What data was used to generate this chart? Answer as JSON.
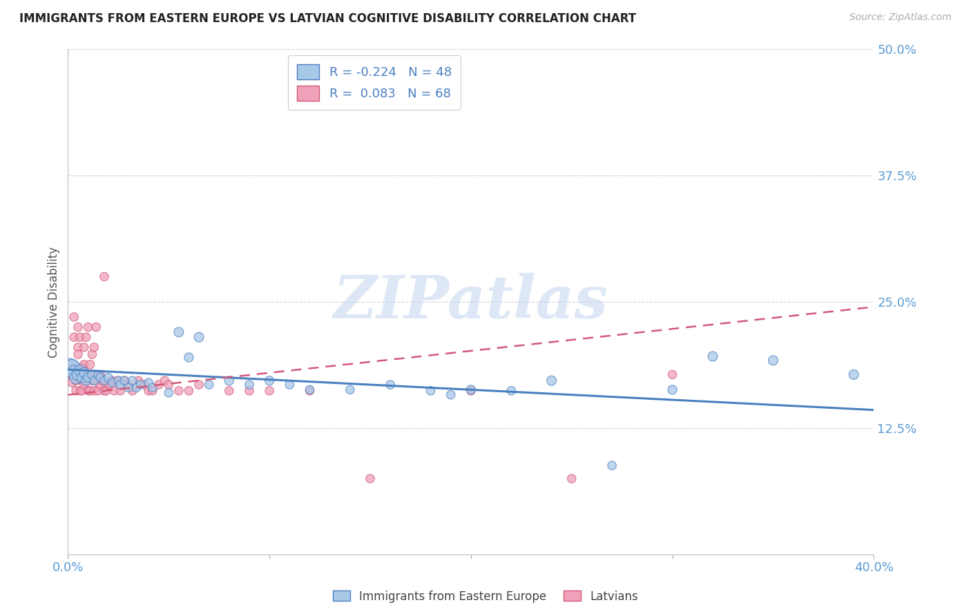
{
  "title": "IMMIGRANTS FROM EASTERN EUROPE VS LATVIAN COGNITIVE DISABILITY CORRELATION CHART",
  "source": "Source: ZipAtlas.com",
  "ylabel": "Cognitive Disability",
  "legend_label_blue": "Immigrants from Eastern Europe",
  "legend_label_pink": "Latvians",
  "R_blue": -0.224,
  "N_blue": 48,
  "R_pink": 0.083,
  "N_pink": 68,
  "xlim": [
    0.0,
    0.4
  ],
  "ylim": [
    0.0,
    0.5
  ],
  "yticks": [
    0.125,
    0.25,
    0.375,
    0.5
  ],
  "ytick_labels": [
    "12.5%",
    "25.0%",
    "37.5%",
    "50.0%"
  ],
  "xticks": [
    0.0,
    0.1,
    0.2,
    0.3,
    0.4
  ],
  "xtick_labels": [
    "0.0%",
    "",
    "",
    "",
    "40.0%"
  ],
  "color_blue": "#a8c8e8",
  "color_pink": "#f0a0b8",
  "color_blue_line": "#4a7fc0",
  "color_pink_line": "#d05878",
  "watermark_color": "#c8d8f0",
  "watermark": "ZIPatlas",
  "background_color": "#ffffff",
  "blue_line_x0": 0.0,
  "blue_line_y0": 0.183,
  "blue_line_x1": 0.4,
  "blue_line_y1": 0.143,
  "pink_line_x0": 0.0,
  "pink_line_y0": 0.158,
  "pink_line_x1": 0.4,
  "pink_line_y1": 0.245,
  "blue_scatter_x": [
    0.001,
    0.002,
    0.003,
    0.004,
    0.005,
    0.006,
    0.007,
    0.008,
    0.009,
    0.01,
    0.012,
    0.013,
    0.015,
    0.016,
    0.018,
    0.02,
    0.022,
    0.025,
    0.026,
    0.028,
    0.03,
    0.032,
    0.034,
    0.036,
    0.04,
    0.042,
    0.05,
    0.055,
    0.06,
    0.065,
    0.07,
    0.08,
    0.09,
    0.1,
    0.11,
    0.12,
    0.14,
    0.16,
    0.18,
    0.19,
    0.2,
    0.22,
    0.24,
    0.27,
    0.3,
    0.32,
    0.35,
    0.39
  ],
  "blue_scatter_y": [
    0.185,
    0.185,
    0.18,
    0.175,
    0.178,
    0.182,
    0.175,
    0.18,
    0.172,
    0.175,
    0.178,
    0.172,
    0.178,
    0.175,
    0.172,
    0.175,
    0.17,
    0.172,
    0.168,
    0.172,
    0.165,
    0.172,
    0.165,
    0.168,
    0.17,
    0.165,
    0.16,
    0.22,
    0.195,
    0.215,
    0.168,
    0.172,
    0.168,
    0.172,
    0.168,
    0.163,
    0.163,
    0.168,
    0.162,
    0.158,
    0.163,
    0.162,
    0.172,
    0.088,
    0.163,
    0.196,
    0.192,
    0.178
  ],
  "blue_scatter_size": [
    350,
    280,
    220,
    180,
    160,
    140,
    120,
    110,
    100,
    95,
    90,
    85,
    80,
    80,
    80,
    80,
    80,
    80,
    80,
    80,
    80,
    80,
    80,
    80,
    80,
    80,
    80,
    100,
    90,
    100,
    80,
    90,
    80,
    90,
    80,
    80,
    80,
    80,
    80,
    80,
    90,
    80,
    100,
    80,
    90,
    100,
    100,
    100
  ],
  "pink_scatter_x": [
    0.001,
    0.002,
    0.002,
    0.003,
    0.003,
    0.004,
    0.004,
    0.004,
    0.005,
    0.005,
    0.005,
    0.006,
    0.006,
    0.006,
    0.007,
    0.007,
    0.007,
    0.008,
    0.008,
    0.008,
    0.009,
    0.009,
    0.01,
    0.01,
    0.01,
    0.011,
    0.011,
    0.012,
    0.012,
    0.013,
    0.013,
    0.014,
    0.014,
    0.015,
    0.015,
    0.016,
    0.016,
    0.017,
    0.018,
    0.018,
    0.019,
    0.02,
    0.021,
    0.022,
    0.023,
    0.025,
    0.026,
    0.028,
    0.03,
    0.032,
    0.035,
    0.038,
    0.04,
    0.042,
    0.045,
    0.048,
    0.05,
    0.055,
    0.06,
    0.065,
    0.08,
    0.09,
    0.1,
    0.12,
    0.15,
    0.2,
    0.25,
    0.3
  ],
  "pink_scatter_y": [
    0.178,
    0.185,
    0.17,
    0.235,
    0.215,
    0.185,
    0.172,
    0.162,
    0.225,
    0.205,
    0.198,
    0.215,
    0.182,
    0.162,
    0.185,
    0.172,
    0.162,
    0.168,
    0.205,
    0.188,
    0.215,
    0.172,
    0.225,
    0.178,
    0.162,
    0.188,
    0.162,
    0.198,
    0.172,
    0.205,
    0.162,
    0.172,
    0.225,
    0.178,
    0.162,
    0.178,
    0.168,
    0.172,
    0.162,
    0.275,
    0.162,
    0.168,
    0.168,
    0.172,
    0.162,
    0.172,
    0.162,
    0.172,
    0.168,
    0.162,
    0.172,
    0.168,
    0.162,
    0.162,
    0.168,
    0.172,
    0.168,
    0.162,
    0.162,
    0.168,
    0.162,
    0.162,
    0.162,
    0.162,
    0.075,
    0.162,
    0.075,
    0.178
  ],
  "pink_scatter_size": [
    80,
    80,
    80,
    80,
    80,
    80,
    80,
    80,
    80,
    80,
    80,
    80,
    80,
    80,
    80,
    80,
    80,
    80,
    80,
    80,
    80,
    80,
    80,
    80,
    80,
    80,
    80,
    80,
    80,
    80,
    80,
    80,
    80,
    80,
    80,
    80,
    80,
    80,
    80,
    80,
    80,
    80,
    80,
    80,
    80,
    80,
    80,
    80,
    80,
    80,
    80,
    80,
    80,
    80,
    80,
    80,
    80,
    80,
    80,
    80,
    80,
    80,
    80,
    80,
    80,
    80,
    80,
    80
  ]
}
